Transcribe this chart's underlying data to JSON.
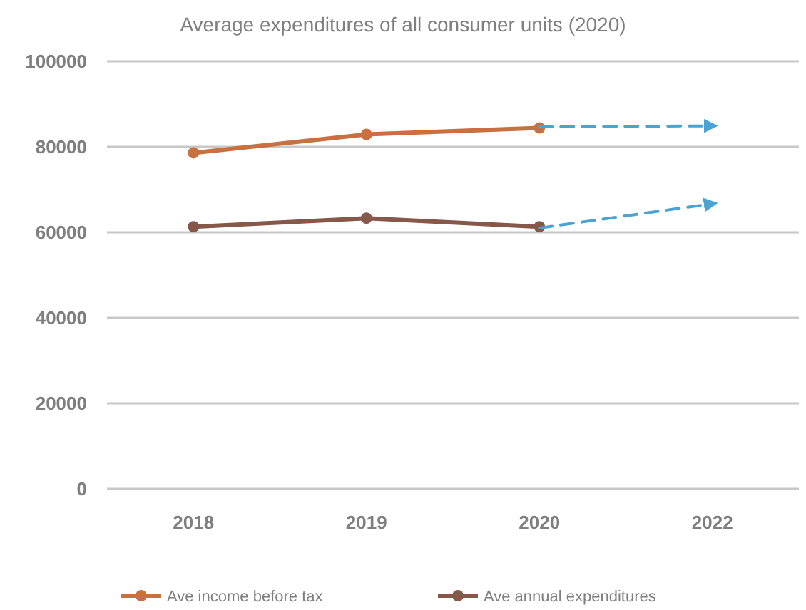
{
  "chart_data": {
    "type": "line",
    "title": "Average expenditures of all consumer units (2020)",
    "categories": [
      "2018",
      "2019",
      "2020",
      "2022"
    ],
    "series": [
      {
        "name": "Ave income before tax",
        "color": "#c8703f",
        "values": [
          78600,
          82900,
          84400,
          null
        ],
        "marker": "circle"
      },
      {
        "name": "Ave annual expenditures",
        "color": "#85584a",
        "values": [
          61300,
          63300,
          61300,
          null
        ],
        "marker": "circle"
      },
      {
        "color": "#4aa3d4",
        "values": [
          null,
          null,
          84700,
          84900
        ],
        "marker": "none",
        "line_style": "dashed"
      },
      {
        "color": "#4aa3d4",
        "values": [
          null,
          null,
          61000,
          66700
        ],
        "marker": "none",
        "line_style": "dashed"
      }
    ],
    "ylim": [
      0,
      100000
    ],
    "yticks": [
      0,
      20000,
      40000,
      60000,
      80000,
      100000
    ],
    "grid": "y",
    "legend": "bottom"
  }
}
